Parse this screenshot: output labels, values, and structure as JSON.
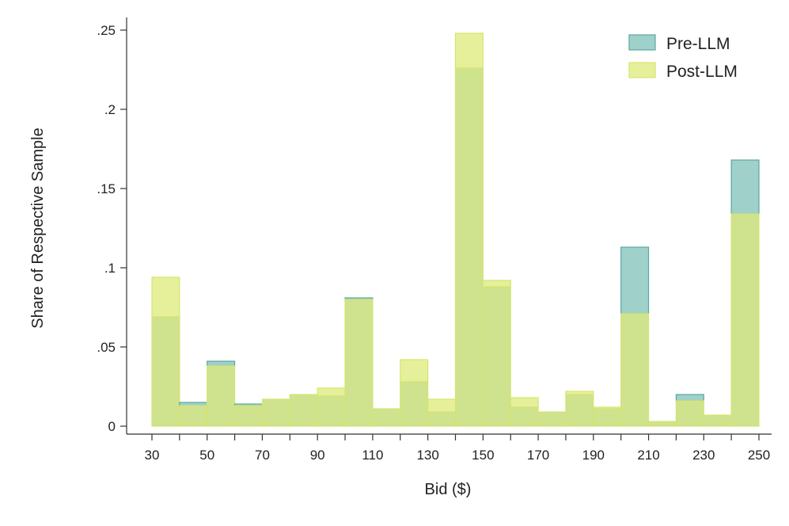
{
  "chart_data": {
    "type": "bar",
    "xlabel": "Bid ($)",
    "ylabel": "Share of Respective Sample",
    "bin_width": 10,
    "xlim": [
      25,
      255
    ],
    "ylim": [
      0,
      0.255
    ],
    "x_ticks": [
      30,
      50,
      70,
      90,
      110,
      130,
      150,
      170,
      190,
      210,
      230,
      250
    ],
    "y_ticks": [
      0,
      0.05,
      0.1,
      0.15,
      0.2,
      0.25
    ],
    "y_tick_labels": [
      "0",
      ".05",
      ".1",
      ".15",
      ".2",
      ".25"
    ],
    "grid": false,
    "legend_position": "top-right",
    "bins": [
      30,
      40,
      50,
      60,
      70,
      80,
      90,
      100,
      110,
      120,
      130,
      140,
      150,
      160,
      170,
      180,
      190,
      200,
      210,
      220,
      230,
      240
    ],
    "series": [
      {
        "name": "Pre-LLM",
        "color": "#9fd0c9",
        "edge_color": "#5aa8a2",
        "values": [
          0.069,
          0.015,
          0.041,
          0.014,
          0.017,
          0.02,
          0.019,
          0.081,
          0.011,
          0.028,
          0.009,
          0.226,
          0.088,
          0.012,
          0.009,
          0.02,
          0.011,
          0.113,
          0.003,
          0.02,
          0.007,
          0.168
        ]
      },
      {
        "name": "Post-LLM",
        "color": "#e6f09a",
        "edge_color": "#d5e56e",
        "values": [
          0.094,
          0.013,
          0.038,
          0.013,
          0.017,
          0.02,
          0.024,
          0.08,
          0.011,
          0.042,
          0.017,
          0.248,
          0.092,
          0.018,
          0.009,
          0.022,
          0.012,
          0.071,
          0.003,
          0.016,
          0.007,
          0.134
        ]
      }
    ],
    "overlap_color": "#cfe28e"
  }
}
